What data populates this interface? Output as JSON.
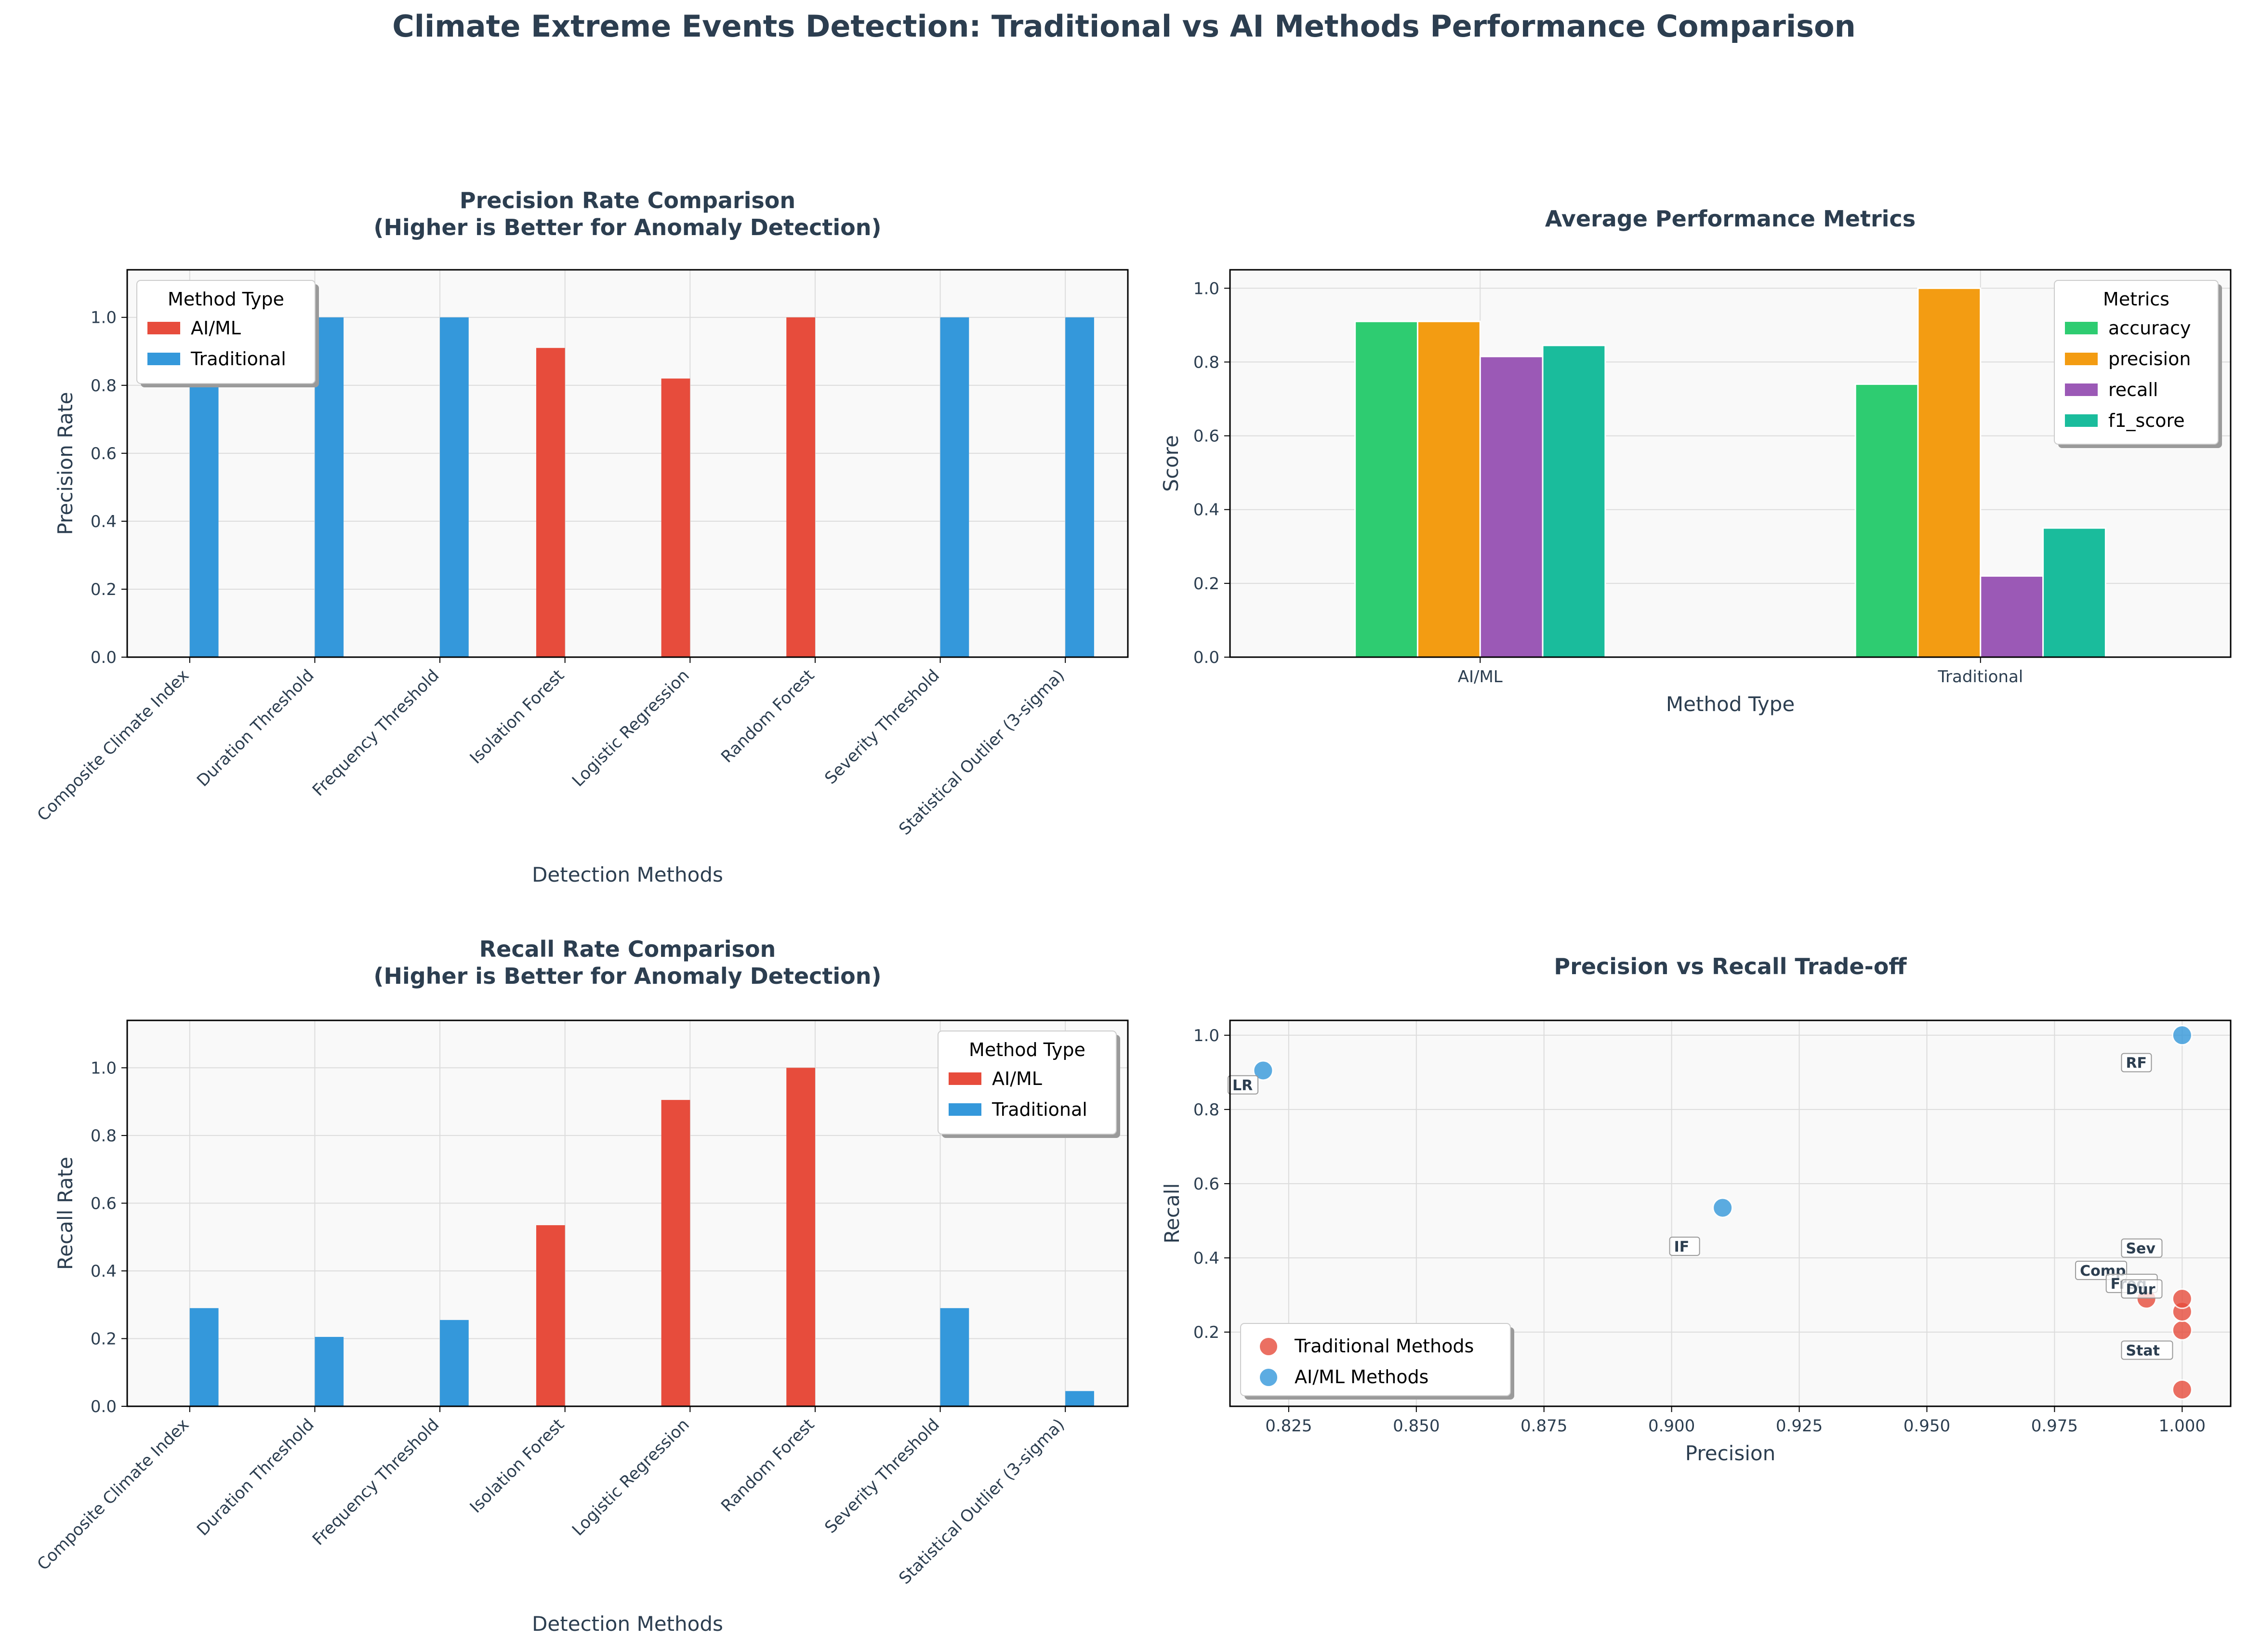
{
  "figure_title": "Climate Extreme Events Detection: Traditional vs AI Methods Performance Comparison",
  "colors": {
    "ai": "#e74c3c",
    "traditional": "#3498db",
    "accuracy": "#2ecc71",
    "precision": "#f39c12",
    "recall": "#9b59b6",
    "f1_score": "#1abc9c",
    "scatter_traditional": "#e74c3c",
    "scatter_ai": "#3498db",
    "text": "#2c3e50",
    "panel_bg": "#f9f9f9"
  },
  "chart_data": [
    {
      "type": "bar",
      "title_lines": [
        "Precision Rate Comparison",
        "(Higher is Better for Anomaly Detection)"
      ],
      "xlabel": "Detection Methods",
      "ylabel": "Precision Rate",
      "ylim": [
        0,
        1.14
      ],
      "yticks": [
        "0.0",
        "0.2",
        "0.4",
        "0.6",
        "0.8",
        "1.0"
      ],
      "categories": [
        "Composite Climate Index",
        "Duration Threshold",
        "Frequency Threshold",
        "Isolation Forest",
        "Logistic Regression",
        "Random Forest",
        "Severity Threshold",
        "Statistical Outlier (3-sigma)"
      ],
      "series": [
        {
          "name": "AI/ML",
          "values": [
            0,
            0,
            0,
            0.91,
            0.82,
            1.0,
            0,
            0
          ]
        },
        {
          "name": "Traditional",
          "values": [
            0.993,
            1.0,
            1.0,
            0,
            0,
            0,
            1.0,
            1.0
          ]
        }
      ],
      "legend_title": "Method Type",
      "legend_position": "top-left",
      "grid": true
    },
    {
      "type": "bar",
      "title_lines": [
        "Average Performance Metrics"
      ],
      "xlabel": "Method Type",
      "ylabel": "Score",
      "ylim": [
        0,
        1.05
      ],
      "yticks": [
        "0.0",
        "0.2",
        "0.4",
        "0.6",
        "0.8",
        "1.0"
      ],
      "categories": [
        "AI/ML",
        "Traditional"
      ],
      "series": [
        {
          "name": "accuracy",
          "values": [
            0.91,
            0.74
          ]
        },
        {
          "name": "precision",
          "values": [
            0.91,
            1.0
          ]
        },
        {
          "name": "recall",
          "values": [
            0.815,
            0.22
          ]
        },
        {
          "name": "f1_score",
          "values": [
            0.845,
            0.35
          ]
        }
      ],
      "legend_title": "Metrics",
      "legend_position": "top-right",
      "grid": true
    },
    {
      "type": "bar",
      "title_lines": [
        "Recall Rate Comparison",
        "(Higher is Better for Anomaly Detection)"
      ],
      "xlabel": "Detection Methods",
      "ylabel": "Recall Rate",
      "ylim": [
        0,
        1.14
      ],
      "yticks": [
        "0.0",
        "0.2",
        "0.4",
        "0.6",
        "0.8",
        "1.0"
      ],
      "categories": [
        "Composite Climate Index",
        "Duration Threshold",
        "Frequency Threshold",
        "Isolation Forest",
        "Logistic Regression",
        "Random Forest",
        "Severity Threshold",
        "Statistical Outlier (3-sigma)"
      ],
      "series": [
        {
          "name": "AI/ML",
          "values": [
            0,
            0,
            0,
            0.535,
            0.905,
            1.0,
            0,
            0
          ]
        },
        {
          "name": "Traditional",
          "values": [
            0.29,
            0.205,
            0.255,
            0,
            0,
            0,
            0.29,
            0.045
          ]
        }
      ],
      "legend_title": "Method Type",
      "legend_position": "top-right",
      "grid": true
    },
    {
      "type": "scatter",
      "title_lines": [
        "Precision vs Recall Trade-off"
      ],
      "xlabel": "Precision",
      "ylabel": "Recall",
      "xlim": [
        0.8135,
        1.0095
      ],
      "ylim": [
        0.0,
        1.04
      ],
      "xticks": [
        "0.825",
        "0.850",
        "0.875",
        "0.900",
        "0.925",
        "0.950",
        "0.975",
        "1.000"
      ],
      "yticks": [
        "0.2",
        "0.4",
        "0.6",
        "0.8",
        "1.0"
      ],
      "series": [
        {
          "name": "Traditional Methods",
          "points": [
            [
              0.993,
              0.29
            ],
            [
              1.0,
              0.205
            ],
            [
              1.0,
              0.255
            ],
            [
              1.0,
              0.29
            ],
            [
              1.0,
              0.045
            ]
          ]
        },
        {
          "name": "AI/ML Methods",
          "points": [
            [
              0.91,
              0.535
            ],
            [
              0.82,
              0.905
            ],
            [
              1.0,
              1.0
            ]
          ]
        }
      ],
      "annotations": [
        {
          "text": "RF",
          "x": 0.9885,
          "y": 0.925
        },
        {
          "text": "LR",
          "x": 0.8135,
          "y": 0.865
        },
        {
          "text": "IF",
          "x": 0.9,
          "y": 0.43
        },
        {
          "text": "Sev",
          "x": 0.9885,
          "y": 0.425
        },
        {
          "text": "Comp",
          "x": 0.9795,
          "y": 0.365
        },
        {
          "text": "Freq",
          "x": 0.9855,
          "y": 0.33
        },
        {
          "text": "Dur",
          "x": 0.9885,
          "y": 0.315
        },
        {
          "text": "Stat",
          "x": 0.9885,
          "y": 0.15
        }
      ],
      "legend_position": "bottom-left",
      "grid": true
    }
  ]
}
